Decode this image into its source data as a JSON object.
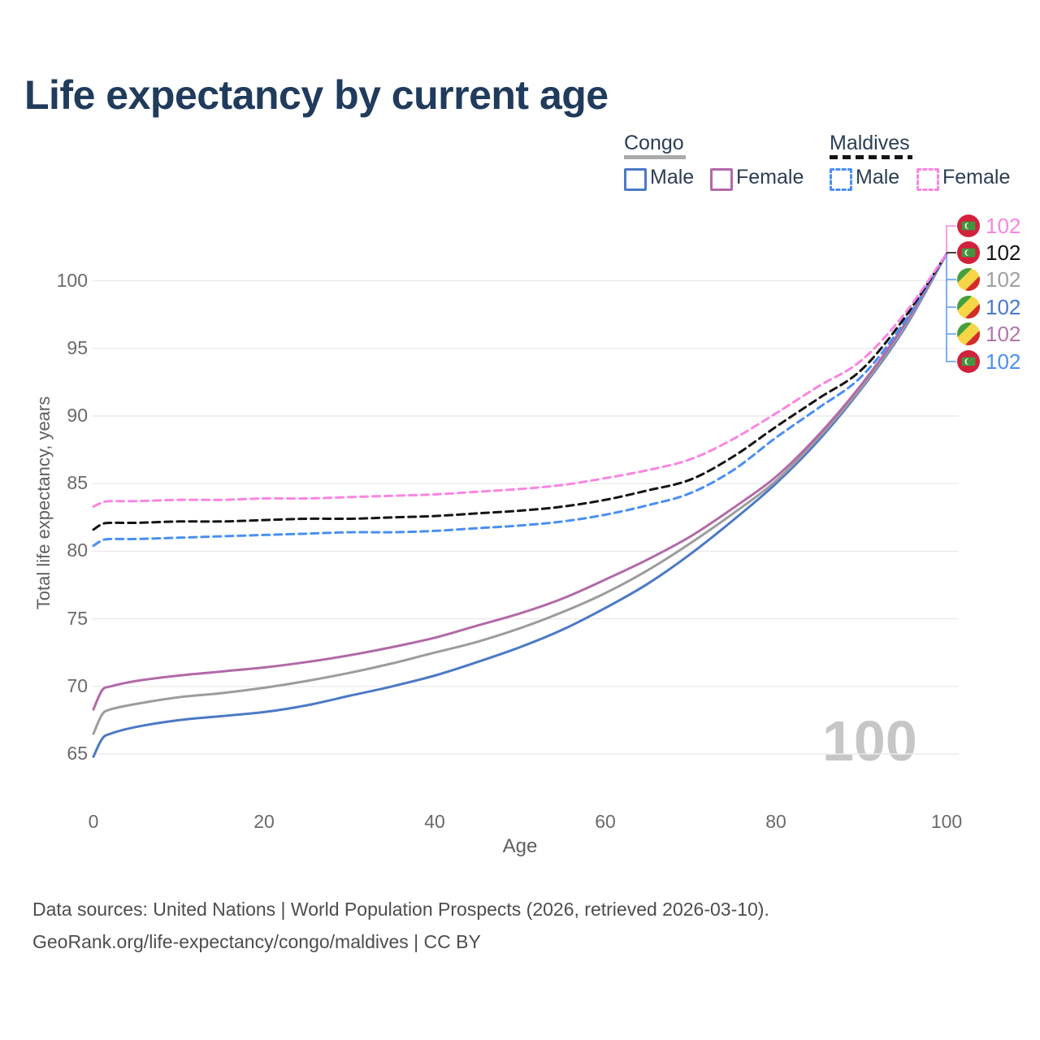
{
  "title": "Life expectancy by current age",
  "watermark_current_age": "100",
  "legend": {
    "congo": {
      "label": "Congo",
      "male": "Male",
      "female": "Female"
    },
    "maldives": {
      "label": "Maldives",
      "male": "Male",
      "female": "Female"
    }
  },
  "axes": {
    "y_title": "Total life expectancy, years",
    "x_title": "Age",
    "y_ticks": [
      65,
      70,
      75,
      80,
      85,
      90,
      95,
      100
    ],
    "x_ticks": [
      0,
      20,
      40,
      60,
      80,
      100
    ]
  },
  "footer": {
    "line1": "Data sources: United Nations | World Population Prospects (2026, retrieved 2026-03-10).",
    "line2": "GeoRank.org/life-expectancy/congo/maldives | CC BY"
  },
  "colors": {
    "title_text": "#203b5c",
    "legend_text": "#2c3e54",
    "congo_male": "#4c79c5",
    "congo_both": "#9c9c9c",
    "congo_female": "#b269a8",
    "maldives_male": "#4a8ff2",
    "maldives_both": "#141414",
    "maldives_female": "#fa85e1",
    "congo_underline": "#ababab",
    "maldives_underline": "#141414",
    "gridline": "#ebebeb",
    "leader_blue": "#5b9cf0",
    "watermark": "#c6c6c6"
  },
  "end_labels": [
    {
      "flag": "maldives",
      "series": "maldives_female",
      "value": "102",
      "color": "#fa85e1"
    },
    {
      "flag": "maldives",
      "series": "maldives_both",
      "value": "102",
      "color": "#141414"
    },
    {
      "flag": "congo",
      "series": "congo_both",
      "value": "102",
      "color": "#9e9e9e"
    },
    {
      "flag": "congo",
      "series": "congo_male",
      "value": "102",
      "color": "#4679c8"
    },
    {
      "flag": "congo",
      "series": "congo_female",
      "value": "102",
      "color": "#b474ad"
    },
    {
      "flag": "maldives",
      "series": "maldives_male",
      "value": "102",
      "color": "#4a8ff2"
    }
  ],
  "chart_data": {
    "type": "line",
    "title": "Life expectancy by current age",
    "xlabel": "Age",
    "ylabel": "Total life expectancy, years",
    "xlim": [
      0,
      100
    ],
    "ylim": [
      63.5,
      103
    ],
    "x_ticks": [
      0,
      20,
      40,
      60,
      80,
      100
    ],
    "y_ticks": [
      65,
      70,
      75,
      80,
      85,
      90,
      95,
      100
    ],
    "grid": "horizontal",
    "legend_position": "top-right",
    "end_value": 102,
    "current_age_indicator": 100,
    "x": [
      0,
      1,
      2,
      5,
      10,
      15,
      20,
      25,
      30,
      35,
      40,
      45,
      50,
      55,
      60,
      65,
      70,
      75,
      80,
      85,
      90,
      95,
      100
    ],
    "series": [
      {
        "key": "congo_male",
        "name": "Congo Male",
        "country": "Congo",
        "sex": "Male",
        "style": "solid",
        "color": "#4c79c5",
        "values": [
          64.8,
          66.1,
          66.5,
          67.0,
          67.5,
          67.8,
          68.1,
          68.6,
          69.3,
          70.0,
          70.8,
          71.8,
          72.9,
          74.2,
          75.8,
          77.6,
          79.8,
          82.3,
          85.0,
          88.2,
          92.0,
          96.4,
          102
        ]
      },
      {
        "key": "congo_both",
        "name": "Congo (both sexes)",
        "country": "Congo",
        "sex": "Both",
        "style": "solid",
        "color": "#9c9c9c",
        "values": [
          66.5,
          67.9,
          68.3,
          68.7,
          69.2,
          69.5,
          69.9,
          70.4,
          71.0,
          71.7,
          72.5,
          73.3,
          74.3,
          75.5,
          76.9,
          78.6,
          80.6,
          82.8,
          85.2,
          88.4,
          92.1,
          96.5,
          102
        ]
      },
      {
        "key": "congo_female",
        "name": "Congo Female",
        "country": "Congo",
        "sex": "Female",
        "style": "solid",
        "color": "#b269a8",
        "values": [
          68.3,
          69.7,
          70.0,
          70.4,
          70.8,
          71.1,
          71.4,
          71.8,
          72.3,
          72.9,
          73.6,
          74.5,
          75.4,
          76.5,
          77.9,
          79.4,
          81.1,
          83.2,
          85.5,
          88.6,
          92.3,
          96.7,
          102
        ]
      },
      {
        "key": "maldives_male",
        "name": "Maldives Male",
        "country": "Maldives",
        "sex": "Male",
        "style": "dashed",
        "color": "#4a8ff2",
        "values": [
          80.4,
          80.8,
          80.9,
          80.9,
          81.0,
          81.1,
          81.2,
          81.3,
          81.4,
          81.4,
          81.5,
          81.7,
          81.9,
          82.2,
          82.7,
          83.4,
          84.3,
          86.0,
          88.4,
          90.6,
          92.9,
          96.9,
          102
        ]
      },
      {
        "key": "maldives_both",
        "name": "Maldives (both sexes)",
        "country": "Maldives",
        "sex": "Both",
        "style": "dashed",
        "color": "#141414",
        "values": [
          81.6,
          82.0,
          82.1,
          82.1,
          82.2,
          82.2,
          82.3,
          82.4,
          82.4,
          82.5,
          82.6,
          82.8,
          83.0,
          83.3,
          83.8,
          84.5,
          85.3,
          87.0,
          89.2,
          91.3,
          93.4,
          97.2,
          102
        ]
      },
      {
        "key": "maldives_female",
        "name": "Maldives Female",
        "country": "Maldives",
        "sex": "Female",
        "style": "dashed",
        "color": "#fa85e1",
        "values": [
          83.3,
          83.6,
          83.7,
          83.7,
          83.8,
          83.8,
          83.9,
          83.9,
          84.0,
          84.1,
          84.2,
          84.4,
          84.6,
          84.9,
          85.4,
          86.0,
          86.8,
          88.3,
          90.2,
          92.2,
          94.1,
          97.5,
          102
        ]
      }
    ]
  }
}
